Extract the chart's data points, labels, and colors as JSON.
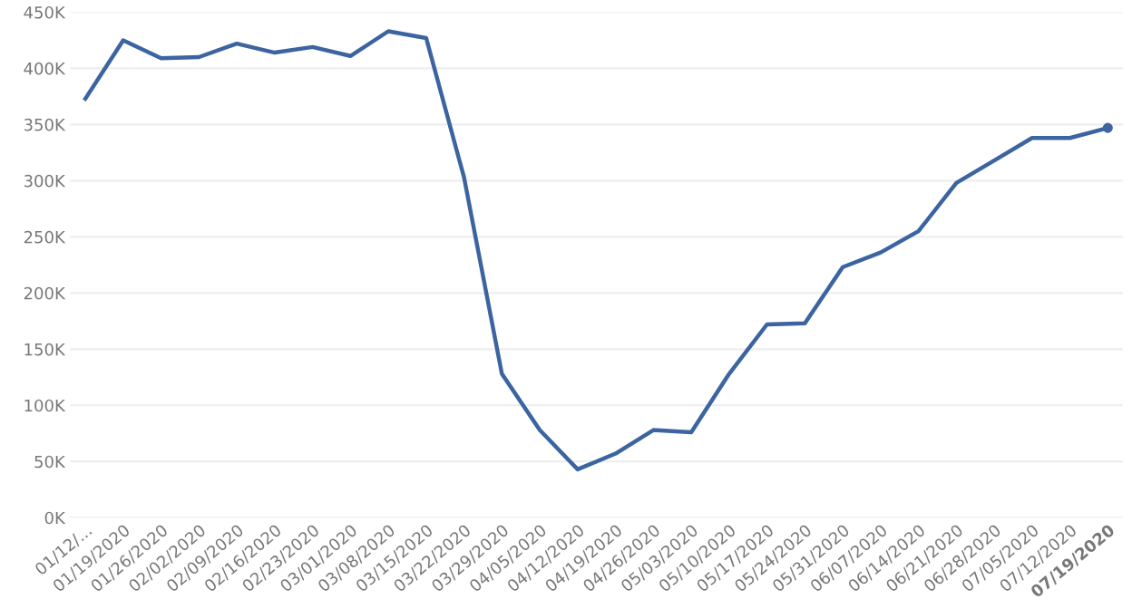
{
  "chart_data": {
    "type": "line",
    "categories": [
      "01/12/...",
      "01/19/2020",
      "01/26/2020",
      "02/02/2020",
      "02/09/2020",
      "02/16/2020",
      "02/23/2020",
      "03/01/2020",
      "03/08/2020",
      "03/15/2020",
      "03/22/2020",
      "03/29/2020",
      "04/05/2020",
      "04/12/2020",
      "04/19/2020",
      "04/26/2020",
      "05/03/2020",
      "05/10/2020",
      "05/17/2020",
      "05/24/2020",
      "05/31/2020",
      "06/07/2020",
      "06/14/2020",
      "06/21/2020",
      "06/28/2020",
      "07/05/2020",
      "07/12/2020",
      "07/19/2020"
    ],
    "series": [
      {
        "color": "#3b64a0",
        "values": [
          373000,
          425000,
          409000,
          410000,
          422000,
          414000,
          419000,
          411000,
          433000,
          427000,
          303000,
          128000,
          78000,
          43000,
          57000,
          78000,
          76000,
          128000,
          172000,
          173000,
          223000,
          236000,
          255000,
          298000,
          318000,
          338000,
          338000,
          347000
        ]
      }
    ],
    "ylim": [
      0,
      450000
    ],
    "yticks": [
      {
        "value": 0,
        "label": "0K"
      },
      {
        "value": 50000,
        "label": "50K"
      },
      {
        "value": 100000,
        "label": "100K"
      },
      {
        "value": 150000,
        "label": "150K"
      },
      {
        "value": 200000,
        "label": "200K"
      },
      {
        "value": 250000,
        "label": "250K"
      },
      {
        "value": 300000,
        "label": "300K"
      },
      {
        "value": 350000,
        "label": "350K"
      },
      {
        "value": 400000,
        "label": "400K"
      },
      {
        "value": 450000,
        "label": "450K"
      }
    ],
    "grid": "y",
    "legend": false
  }
}
